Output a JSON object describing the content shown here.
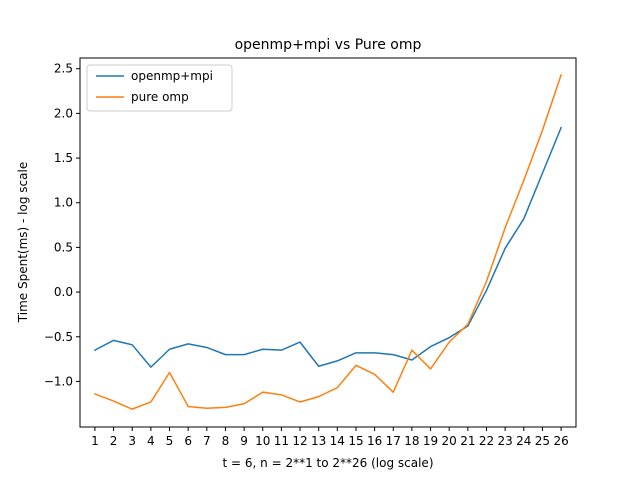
{
  "chart_data": {
    "type": "line",
    "title": "openmp+mpi vs Pure omp",
    "xlabel": "t = 6, n = 2**1 to 2**26 (log scale)",
    "ylabel": "Time Spent(ms) - log scale",
    "x": [
      1,
      2,
      3,
      4,
      5,
      6,
      7,
      8,
      9,
      10,
      11,
      12,
      13,
      14,
      15,
      16,
      17,
      18,
      19,
      20,
      21,
      22,
      23,
      24,
      25,
      26
    ],
    "xlim": [
      0.2,
      26.8
    ],
    "ylim": [
      -1.51,
      2.62
    ],
    "yticks": [
      -1.0,
      -0.5,
      0.0,
      0.5,
      1.0,
      1.5,
      2.0,
      2.5
    ],
    "ytick_labels": [
      "−1.0",
      "−0.5",
      "0.0",
      "0.5",
      "1.0",
      "1.5",
      "2.0",
      "2.5"
    ],
    "grid": false,
    "legend": "top-left",
    "series": [
      {
        "name": "openmp+mpi",
        "color": "#1f77b4",
        "values": [
          -0.65,
          -0.54,
          -0.59,
          -0.84,
          -0.64,
          -0.58,
          -0.62,
          -0.7,
          -0.7,
          -0.64,
          -0.65,
          -0.56,
          -0.83,
          -0.77,
          -0.68,
          -0.68,
          -0.7,
          -0.76,
          -0.61,
          -0.51,
          -0.38,
          0.02,
          0.49,
          0.82,
          1.33,
          1.84
        ]
      },
      {
        "name": "pure omp",
        "color": "#ff7f0e",
        "values": [
          -1.14,
          -1.22,
          -1.31,
          -1.23,
          -0.9,
          -1.28,
          -1.3,
          -1.29,
          -1.25,
          -1.12,
          -1.15,
          -1.23,
          -1.17,
          -1.07,
          -0.82,
          -0.92,
          -1.12,
          -0.65,
          -0.86,
          -0.56,
          -0.36,
          0.12,
          0.72,
          1.25,
          1.81,
          2.43
        ]
      }
    ]
  }
}
